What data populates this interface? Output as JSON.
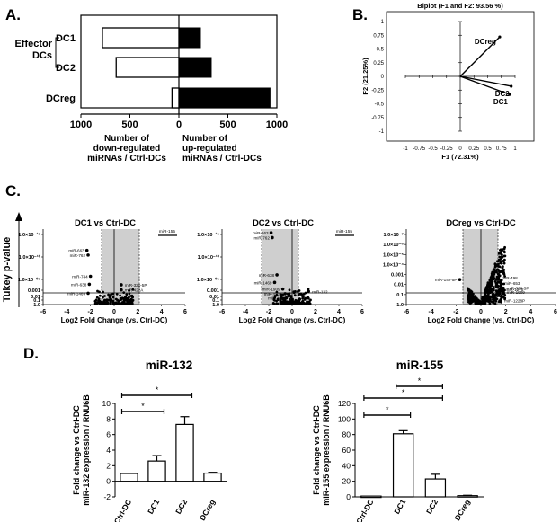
{
  "chart_data": [
    {
      "panel": "A.",
      "type": "bar",
      "group_label": "Effector DCs",
      "categories": [
        "DC1",
        "DC2",
        "DCreg"
      ],
      "series": [
        {
          "name": "Number of down-regulated miRNAs / Ctrl-DCs",
          "values": [
            780,
            640,
            70
          ],
          "color": "#ffffff"
        },
        {
          "name": "Number of up-regulated miRNAs / Ctrl-DCs",
          "values": [
            220,
            330,
            930
          ],
          "color": "#000000"
        }
      ],
      "x_ticks_left": [
        "1000",
        "500",
        "0"
      ],
      "x_ticks_right": [
        "500",
        "1000"
      ],
      "xlabel_left": [
        "Number of",
        "down-regulated",
        "miRNAs / Ctrl-DCs"
      ],
      "xlabel_right": [
        "Number of",
        "up-regulated",
        "miRNAs / Ctrl-DCs"
      ],
      "xlim": [
        -1000,
        1000
      ]
    },
    {
      "panel": "B.",
      "type": "scatter",
      "title": "Biplot (F1 and F2: 93.56 %)",
      "xlabel": "F1 (72.31%)",
      "ylabel": "F2 (21.25%)",
      "xlim": [
        -1,
        1
      ],
      "ylim": [
        -1,
        1
      ],
      "x_ticks": [
        "-1",
        "-0.75",
        "-0.5",
        "-0.25",
        "0",
        "0.25",
        "0.5",
        "0.75",
        "1"
      ],
      "y_ticks": [
        "1",
        "0.75",
        "0.5",
        "0.25",
        "0",
        "-0.25",
        "-0.5",
        "-0.75",
        "-1"
      ],
      "vectors": [
        {
          "label": "DCreg",
          "x": 0.72,
          "y": 0.72
        },
        {
          "label": "DC2",
          "x": 0.93,
          "y": -0.18
        },
        {
          "label": "DC1",
          "x": 0.9,
          "y": -0.33
        }
      ]
    },
    {
      "panel": "C.",
      "type": "scatter",
      "shared_ylabel": "Tukey p-value",
      "xlabel": "Log2 Fold Change (vs. Ctrl-DC)",
      "plots": [
        {
          "title": "DC1 vs Ctrl-DC",
          "x_ticks": [
            "-6",
            "-4",
            "-2",
            "0",
            "2",
            "4",
            "6"
          ],
          "y_ticks": [
            "1.0×10⁻¹⁵",
            "1.0×10⁻¹⁰",
            "1.0×10⁻⁰⁵",
            "0.001",
            "0.01",
            "0.1",
            "1.0"
          ],
          "box_label": "miR-155",
          "labels": [
            {
              "text": "miR-663",
              "x": -2.3,
              "y": 11.5
            },
            {
              "text": "miR-762",
              "x": -2.2,
              "y": 10.5
            },
            {
              "text": "miR-744",
              "x": -2.0,
              "y": 6
            },
            {
              "text": "miR-638",
              "x": -2.1,
              "y": 4.3
            },
            {
              "text": "miR-1469",
              "x": -2.2,
              "y": 2.4
            },
            {
              "text": "miR-320-5P",
              "x": 0.6,
              "y": 4.2
            },
            {
              "text": "miR-422A",
              "x": 0.6,
              "y": 3.1
            }
          ]
        },
        {
          "title": "DC2 vs Ctrl-DC",
          "x_ticks": [
            "-6",
            "-4",
            "-2",
            "0",
            "2",
            "4",
            "6"
          ],
          "y_ticks": [
            "1.0×10⁻¹⁵",
            "1.0×10⁻¹⁰",
            "1.0×10⁻⁰⁵",
            "0.001",
            "0.01",
            "0.1",
            "1.0"
          ],
          "box_label": "miR-155",
          "labels": [
            {
              "text": "miR-663",
              "x": -1.8,
              "y": 15.5
            },
            {
              "text": "miR-762",
              "x": -1.7,
              "y": 14.2
            },
            {
              "text": "miR-638",
              "x": -1.3,
              "y": 6.3
            },
            {
              "text": "miR-1469",
              "x": -1.5,
              "y": 4.7
            },
            {
              "text": "miR-1909",
              "x": -0.8,
              "y": 3.3
            },
            {
              "text": "miR-422A",
              "x": -0.6,
              "y": 2.3
            },
            {
              "text": "miR-194",
              "x": -0.5,
              "y": 1.4
            },
            {
              "text": "miR-132",
              "x": 1.4,
              "y": 2.8
            }
          ]
        },
        {
          "title": "DCreg vs Ctrl-DC",
          "x_ticks": [
            "-6",
            "-4",
            "-2",
            "0",
            "2",
            "4",
            "6"
          ],
          "y_ticks": [
            "1.0×10⁻⁷",
            "1.0×10⁻⁶",
            "1.0×10⁻⁵",
            "1.0×10⁻⁴",
            "0.001",
            "0.01",
            "0.1",
            "1.0"
          ],
          "labels": [
            {
              "text": "miR-142-5P",
              "x": -1.7,
              "y": 5.3
            },
            {
              "text": "miR-498",
              "x": 1.4,
              "y": 5.7
            },
            {
              "text": "miR-653",
              "x": 1.6,
              "y": 4.6
            },
            {
              "text": "miR-320-5P",
              "x": 1.8,
              "y": 3.5
            },
            {
              "text": "miR-1275",
              "x": 1.7,
              "y": 3.2
            },
            {
              "text": "miR-1909",
              "x": 1.8,
              "y": 2.7
            },
            {
              "text": "miR-1228P",
              "x": 1.6,
              "y": 0.9
            }
          ]
        }
      ]
    },
    {
      "panel": "D.",
      "type": "bar",
      "title": "miR-132",
      "ylabel": [
        "Fold change vs Ctrl-DC",
        "miR-132 expression / RNU6B"
      ],
      "categories": [
        "Ctrl-DC",
        "DC1",
        "DC2",
        "DCreg"
      ],
      "values": [
        1.0,
        2.6,
        7.3,
        1.05
      ],
      "errors": [
        0,
        0.7,
        1.0,
        0.1
      ],
      "ylim": [
        -2,
        10
      ],
      "y_ticks": [
        "-2",
        "0",
        "2",
        "4",
        "6",
        "8",
        "10"
      ],
      "significance": [
        {
          "from": "Ctrl-DC",
          "to": "DC1",
          "label": "*"
        },
        {
          "from": "Ctrl-DC",
          "to": "DC2",
          "label": "*"
        }
      ]
    },
    {
      "panel": "D.",
      "type": "bar",
      "title": "miR-155",
      "ylabel": [
        "Fold change vs Ctrl-DC",
        "miR-155 expression / RNU6B"
      ],
      "categories": [
        "Ctrl-DC",
        "DC1",
        "DC2",
        "DCreg"
      ],
      "values": [
        1.0,
        81,
        23,
        1.5
      ],
      "errors": [
        0,
        4,
        6,
        0.5
      ],
      "ylim": [
        0,
        120
      ],
      "y_ticks": [
        "0",
        "20",
        "40",
        "60",
        "80",
        "100",
        "120"
      ],
      "significance": [
        {
          "from": "Ctrl-DC",
          "to": "DC1",
          "label": "*"
        },
        {
          "from": "Ctrl-DC",
          "to": "DC2",
          "label": "*"
        },
        {
          "from": "DC1",
          "to": "DC2",
          "label": "*"
        }
      ]
    }
  ]
}
